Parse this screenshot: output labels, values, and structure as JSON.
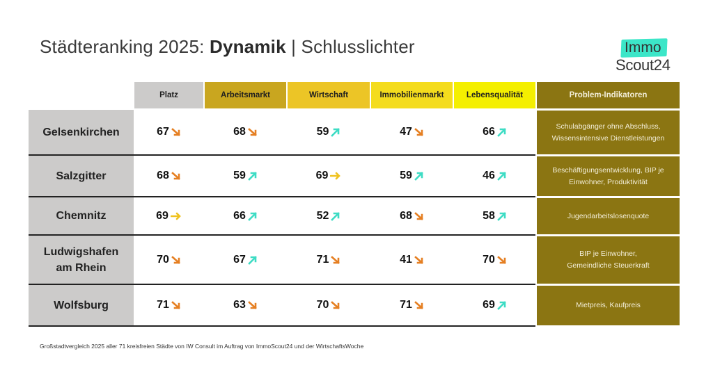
{
  "title": {
    "prefix": "Städteranking 2025: ",
    "bold": "Dynamik",
    "suffix": " | Schlusslichter"
  },
  "logo": {
    "line1": "Immo",
    "line2": "Scout24",
    "badge_color": "#3ce6c8"
  },
  "columns": [
    {
      "key": "platz",
      "label": "Platz",
      "color": "#cccbca"
    },
    {
      "key": "arbeitsmarkt",
      "label": "Arbeitsmarkt",
      "color": "#c9a61f"
    },
    {
      "key": "wirtschaft",
      "label": "Wirtschaft",
      "color": "#ecc526"
    },
    {
      "key": "immobilienmarkt",
      "label": "Immobilienmarkt",
      "color": "#f4dc1d"
    },
    {
      "key": "lebensqualitaet",
      "label": "Lebensqualität",
      "color": "#f4ef00"
    },
    {
      "key": "problem",
      "label": "Problem-Indikatoren",
      "color": "#8b7512"
    }
  ],
  "trend_colors": {
    "down": "#e57f22",
    "up": "#3ddcc4",
    "flat": "#efc21f"
  },
  "rows": [
    {
      "city": "Gelsenkirchen",
      "values": [
        {
          "value": "67",
          "trend": "down"
        },
        {
          "value": "68",
          "trend": "down"
        },
        {
          "value": "59",
          "trend": "up"
        },
        {
          "value": "47",
          "trend": "down"
        },
        {
          "value": "66",
          "trend": "up"
        }
      ],
      "problem": "Schulabgänger ohne Abschluss, Wissensintensive Dienstleistungen"
    },
    {
      "city": "Salzgitter",
      "values": [
        {
          "value": "68",
          "trend": "down"
        },
        {
          "value": "59",
          "trend": "up"
        },
        {
          "value": "69",
          "trend": "flat"
        },
        {
          "value": "59",
          "trend": "up"
        },
        {
          "value": "46",
          "trend": "up"
        }
      ],
      "problem": "Beschäftigungsentwicklung, BIP je Einwohner, Produktivität"
    },
    {
      "city": "Chemnitz",
      "values": [
        {
          "value": "69",
          "trend": "flat"
        },
        {
          "value": "66",
          "trend": "up"
        },
        {
          "value": "52",
          "trend": "up"
        },
        {
          "value": "68",
          "trend": "down"
        },
        {
          "value": "58",
          "trend": "up"
        }
      ],
      "problem": "Jugendarbeitslosenquote"
    },
    {
      "city": "Ludwigshafen am Rhein",
      "values": [
        {
          "value": "70",
          "trend": "down"
        },
        {
          "value": "67",
          "trend": "up"
        },
        {
          "value": "71",
          "trend": "down"
        },
        {
          "value": "41",
          "trend": "down"
        },
        {
          "value": "70",
          "trend": "down"
        }
      ],
      "problem": "BIP je Einwohner, Gemeindliche Steuerkraft"
    },
    {
      "city": "Wolfsburg",
      "values": [
        {
          "value": "71",
          "trend": "down"
        },
        {
          "value": "63",
          "trend": "down"
        },
        {
          "value": "70",
          "trend": "down"
        },
        {
          "value": "71",
          "trend": "down"
        },
        {
          "value": "69",
          "trend": "up"
        }
      ],
      "problem": "Mietpreis, Kaufpreis"
    }
  ],
  "footnote": "Großstadtvergleich 2025 aller 71 kreisfreien Städte von IW Consult im Auftrag von ImmoScout24 und der WirtschaftsWoche"
}
